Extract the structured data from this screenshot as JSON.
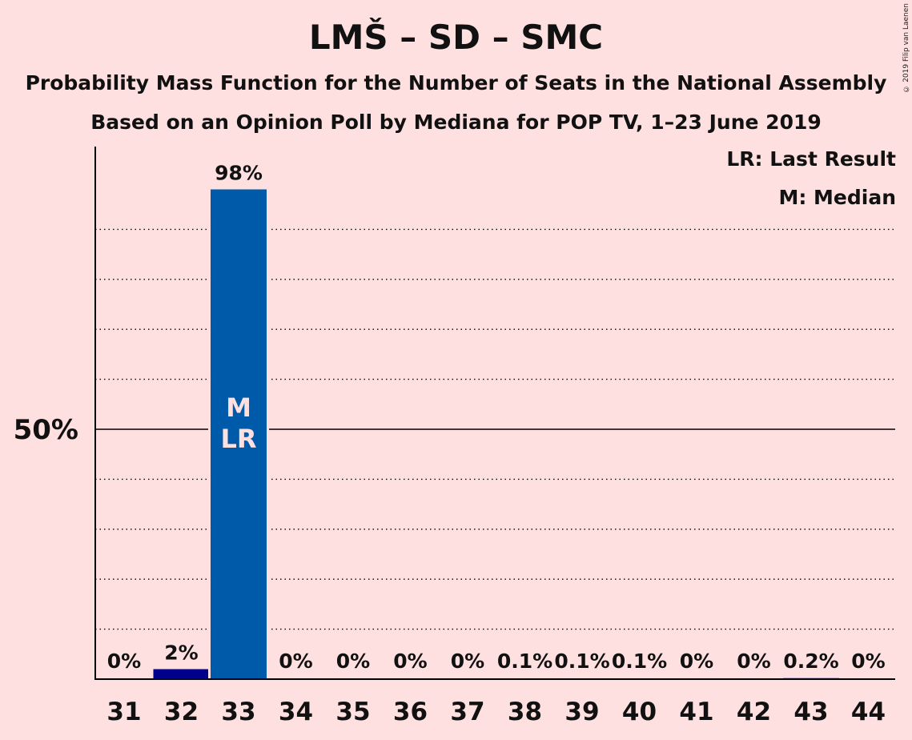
{
  "title": "LMŠ – SD – SMC",
  "subtitle_1": "Probability Mass Function for the Number of Seats in the National Assembly",
  "subtitle_2": "Based on an Opinion Poll by Mediana for POP TV, 1–23 June 2019",
  "copyright": "© 2019 Filip van Laenen",
  "legend": {
    "last_result": "LR: Last Result",
    "median": "M: Median"
  },
  "colors": {
    "background": "#ffe0e0",
    "bar_main": "#005aaa",
    "bar_dark": "#00008b",
    "bar_label_inside": "#ffe0e0"
  },
  "chart_data": {
    "type": "bar",
    "categories": [
      "31",
      "32",
      "33",
      "34",
      "35",
      "36",
      "37",
      "38",
      "39",
      "40",
      "41",
      "42",
      "43",
      "44"
    ],
    "values": [
      0,
      2,
      98,
      0,
      0,
      0,
      0,
      0.1,
      0.1,
      0.1,
      0,
      0,
      0.2,
      0
    ],
    "labels": [
      "0%",
      "2%",
      "98%",
      "0%",
      "0%",
      "0%",
      "0%",
      "0.1%",
      "0.1%",
      "0.1%",
      "0%",
      "0%",
      "0.2%",
      "0%"
    ],
    "ylim": [
      0,
      100
    ],
    "yticks": [
      {
        "value": 50,
        "label": "50%"
      }
    ],
    "gridlines": [
      10,
      20,
      30,
      40,
      60,
      70,
      80,
      90
    ],
    "median_seat": "33",
    "last_result_seat": "33",
    "median_marker": "M",
    "last_result_marker": "LR",
    "grid": true,
    "legend_position": "top-right"
  }
}
